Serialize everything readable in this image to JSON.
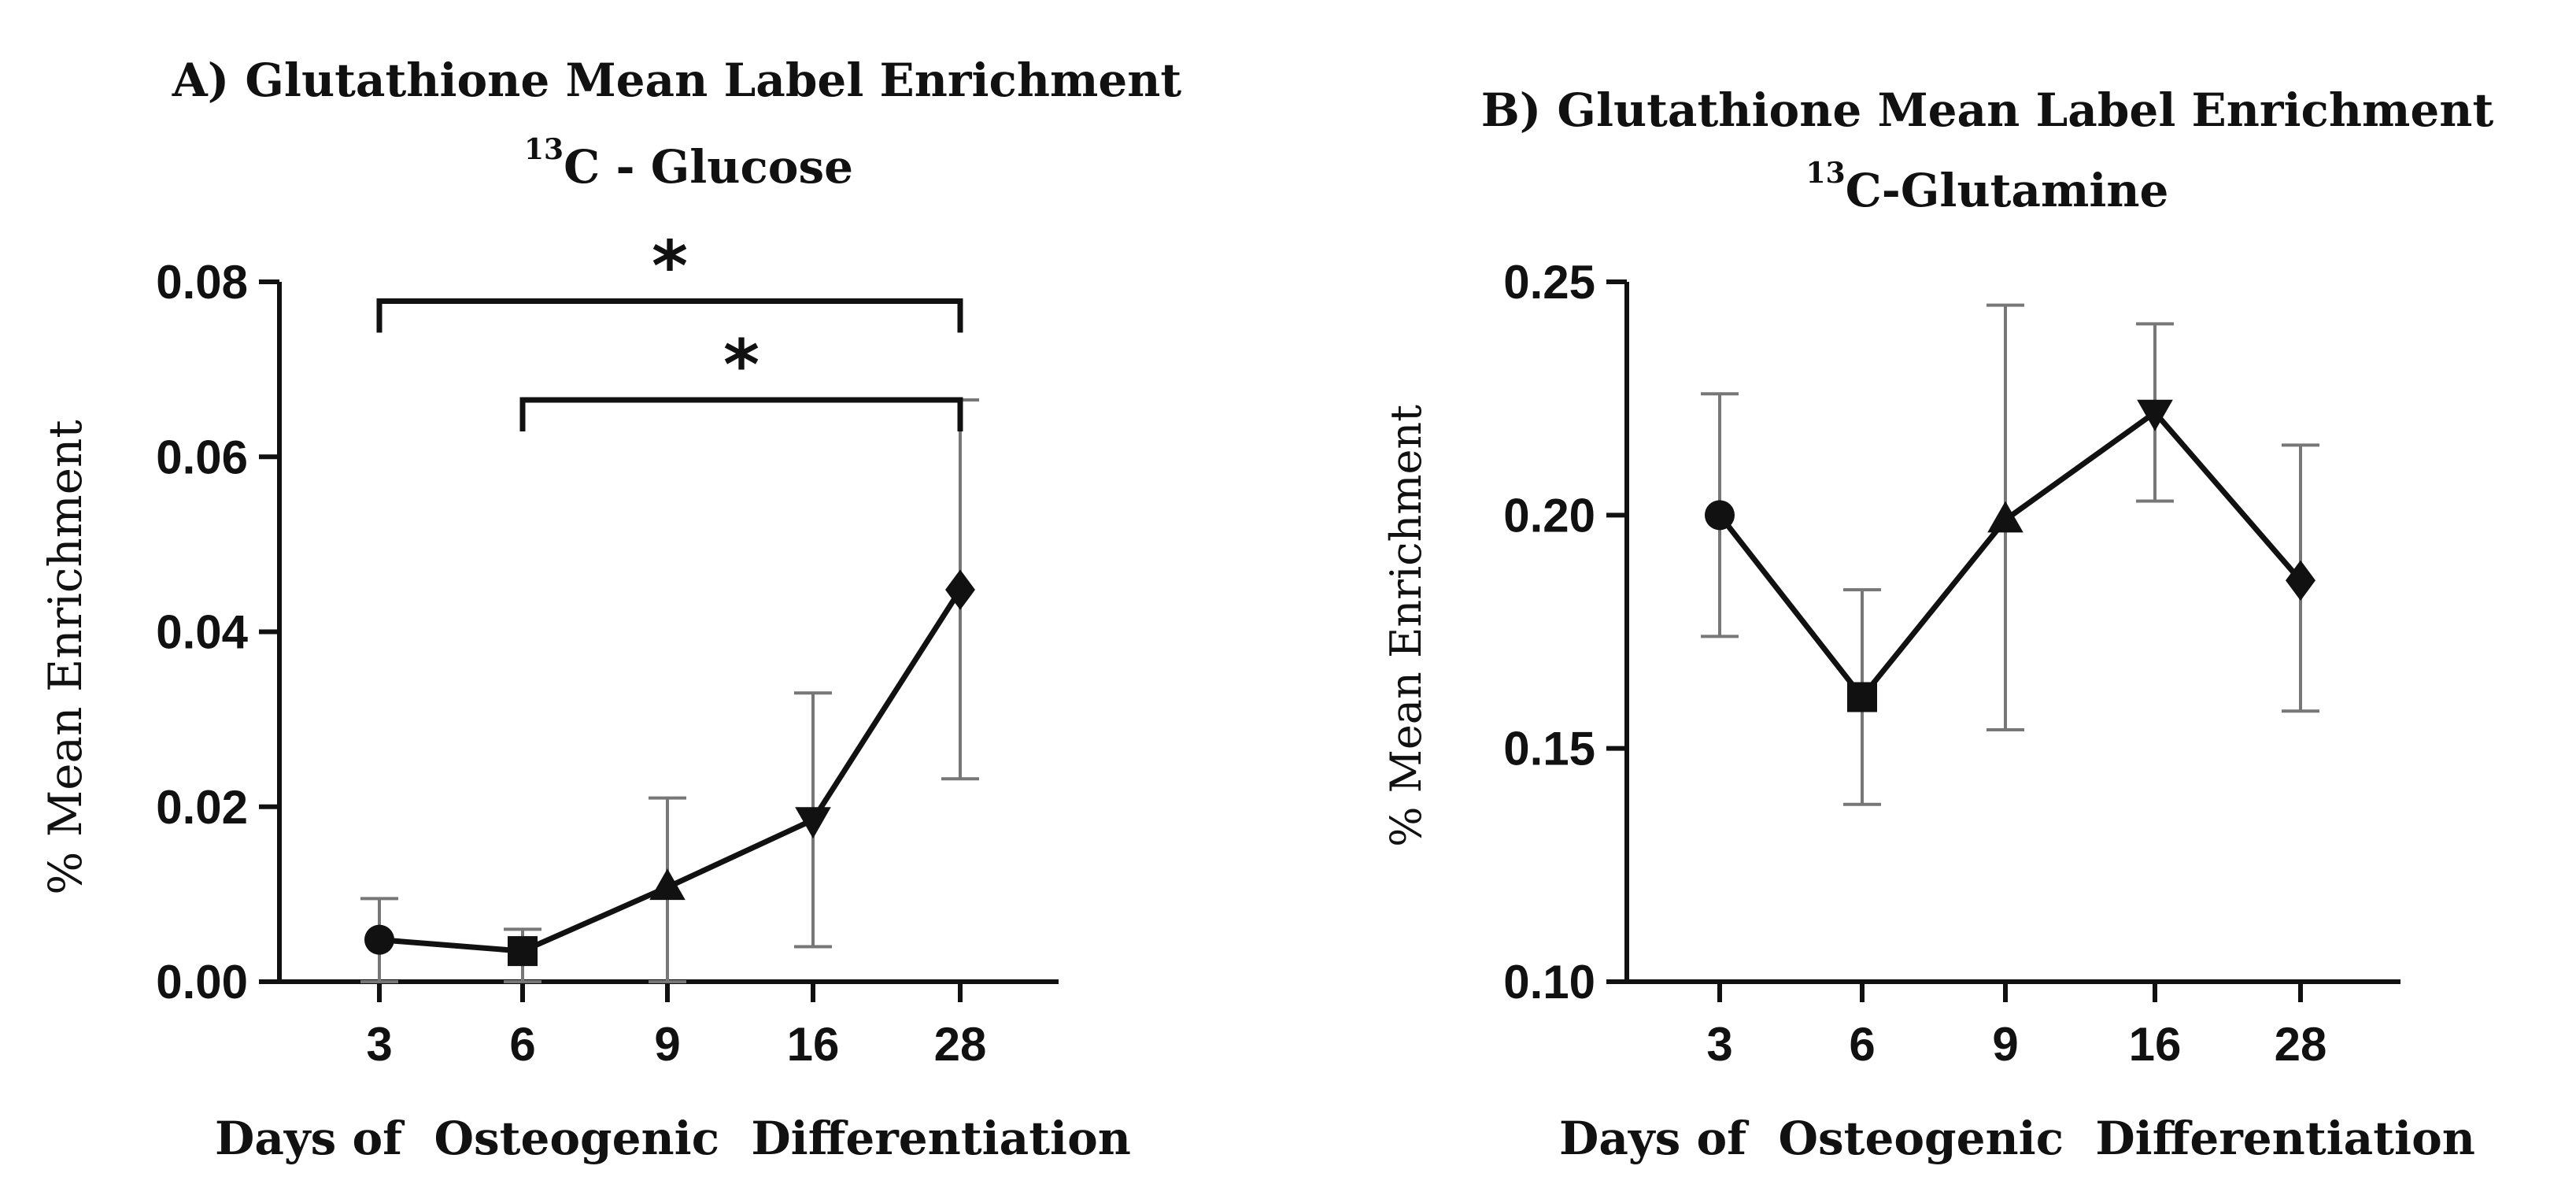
{
  "chart_data": [
    {
      "panel": "A",
      "type": "line",
      "title": "A) Glutathione Mean Label Enrichment",
      "subtitle_sup": "13",
      "subtitle": "C - Glucose",
      "xlabel": "Days of  Osteogenic  Differentiation",
      "ylabel": "% Mean Enrichment",
      "categories": [
        "3",
        "6",
        "9",
        "16",
        "28"
      ],
      "ylim": [
        0,
        0.08
      ],
      "yticks": [
        "0.00",
        "0.02",
        "0.04",
        "0.06",
        "0.08"
      ],
      "series": [
        {
          "name": "Glutathione 13C-Glucose",
          "values": [
            0.0048,
            0.0035,
            0.0108,
            0.0185,
            0.0448
          ],
          "err_low": [
            0.0,
            0.0,
            0.0,
            0.004,
            0.0232
          ],
          "err_high": [
            0.0095,
            0.006,
            0.021,
            0.033,
            0.0665
          ],
          "markers": [
            "circle",
            "square",
            "triangle-up",
            "triangle-down",
            "diamond"
          ]
        }
      ],
      "significance": [
        {
          "from": "3",
          "to": "28",
          "y": 0.0778,
          "label": "*"
        },
        {
          "from": "6",
          "to": "28",
          "y": 0.0665,
          "label": "*"
        }
      ]
    },
    {
      "panel": "B",
      "type": "line",
      "title": "B) Glutathione Mean Label Enrichment",
      "subtitle_sup": "13",
      "subtitle": "C-Glutamine",
      "xlabel": "Days of  Osteogenic  Differentiation",
      "ylabel": "% Mean Enrichment",
      "categories": [
        "3",
        "6",
        "9",
        "16",
        "28"
      ],
      "ylim": [
        0.1,
        0.25
      ],
      "yticks": [
        "0.10",
        "0.15",
        "0.20",
        "0.25"
      ],
      "series": [
        {
          "name": "Glutathione 13C-Glutamine",
          "values": [
            0.2,
            0.161,
            0.199,
            0.222,
            0.186
          ],
          "err_low": [
            0.174,
            0.138,
            0.154,
            0.203,
            0.158
          ],
          "err_high": [
            0.226,
            0.184,
            0.245,
            0.241,
            0.215
          ],
          "markers": [
            "circle",
            "square",
            "triangle-up",
            "triangle-down",
            "diamond"
          ]
        }
      ],
      "significance": []
    }
  ]
}
